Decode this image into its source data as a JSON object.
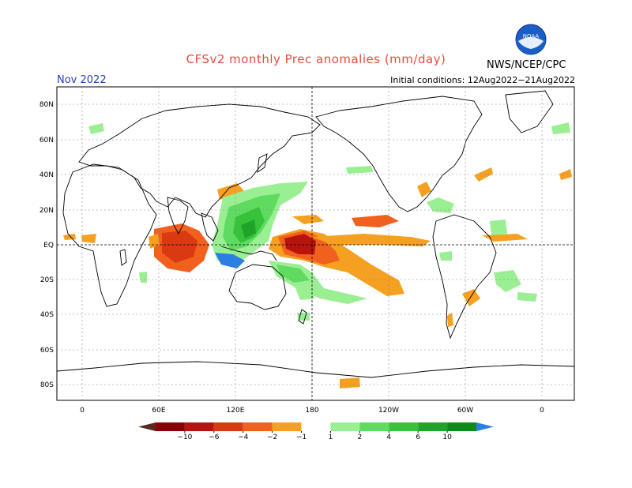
{
  "title": "CFSv2 monthly Prec anomalies (mm/day)",
  "month": "Nov 2022",
  "initial_conditions": "Initial conditions: 12Aug2022−21Aug2022",
  "agency": "NWS/NCEP/CPC",
  "logo": {
    "text": "NOAA",
    "icon": "noaa-logo-icon"
  },
  "lat_labels": [
    "80N",
    "60N",
    "40N",
    "20N",
    "EQ",
    "20S",
    "40S",
    "60S",
    "80S"
  ],
  "lon_labels": [
    "0",
    "60E",
    "120E",
    "180",
    "120W",
    "60W",
    "0"
  ],
  "colorbar": {
    "labels": [
      "-10",
      "-6",
      "-4",
      "-2",
      "-1",
      "1",
      "2",
      "4",
      "6",
      "10"
    ],
    "colors": [
      "#5a2a1e",
      "#8b0000",
      "#b8140e",
      "#d93a12",
      "#f2601d",
      "#f5a020",
      "#ffffff",
      "#9bef93",
      "#5fdc5f",
      "#36c23a",
      "#1fa32a",
      "#0d8a1c",
      "#2b7fe0"
    ]
  },
  "colors": {
    "dry": "#d93a12",
    "wet": "#36c23a",
    "title": "#e84b3a",
    "month": "#2a3fb0"
  }
}
